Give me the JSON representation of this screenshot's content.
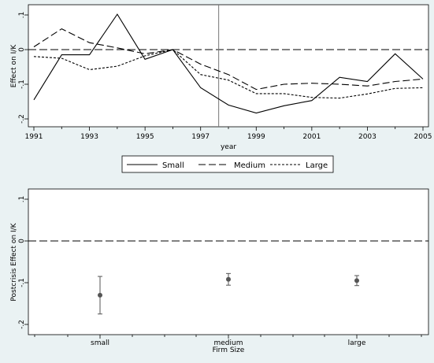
{
  "chart_data": [
    {
      "type": "line",
      "xlabel": "year",
      "ylabel": "Effect on I/K",
      "x": [
        1991,
        1992,
        1993,
        1994,
        1995,
        1996,
        1997,
        1998,
        1999,
        2000,
        2001,
        2002,
        2003,
        2004,
        2005
      ],
      "xticks": [
        "1991",
        "1993",
        "1995",
        "1997",
        "1999",
        "2001",
        "2003",
        "2005"
      ],
      "yticks": [
        ".1",
        "0",
        "-.1",
        "-.2"
      ],
      "ylim": [
        -0.2,
        0.1
      ],
      "reference_lines": {
        "horizontal_dashed_at": 0,
        "vertical_at": 1997.65
      },
      "legend_position": "bottom",
      "series": [
        {
          "name": "Small",
          "style": "solid",
          "values": [
            -0.145,
            -0.015,
            -0.015,
            0.102,
            -0.028,
            0.0,
            -0.11,
            -0.16,
            -0.183,
            -0.162,
            -0.147,
            -0.08,
            -0.092,
            -0.012,
            -0.085
          ]
        },
        {
          "name": "Medium",
          "style": "long-dash",
          "values": [
            0.008,
            0.06,
            0.02,
            0.005,
            -0.012,
            0.0,
            -0.042,
            -0.072,
            -0.115,
            -0.1,
            -0.097,
            -0.1,
            -0.105,
            -0.092,
            -0.085
          ]
        },
        {
          "name": "Large",
          "style": "short-dash",
          "values": [
            -0.02,
            -0.025,
            -0.058,
            -0.048,
            -0.018,
            0.0,
            -0.072,
            -0.088,
            -0.127,
            -0.127,
            -0.138,
            -0.14,
            -0.128,
            -0.112,
            -0.11
          ]
        }
      ]
    },
    {
      "type": "scatter",
      "xlabel": "Firm Size",
      "ylabel": "Postcrisis Effect on I/K",
      "categories": [
        "small",
        "medium",
        "large"
      ],
      "yticks": [
        ".1",
        "0",
        "-.1",
        "-.2"
      ],
      "ylim": [
        -0.2,
        0.1
      ],
      "reference_lines": {
        "horizontal_dashed_at": 0
      },
      "points": [
        {
          "category": "small",
          "estimate": -0.13,
          "ci_low": -0.175,
          "ci_high": -0.085
        },
        {
          "category": "medium",
          "estimate": -0.092,
          "ci_low": -0.106,
          "ci_high": -0.078
        },
        {
          "category": "large",
          "estimate": -0.095,
          "ci_low": -0.107,
          "ci_high": -0.083
        }
      ]
    }
  ],
  "colors": {
    "background": "#eaf2f3",
    "plot": "#ffffff",
    "marker": "#555555"
  }
}
